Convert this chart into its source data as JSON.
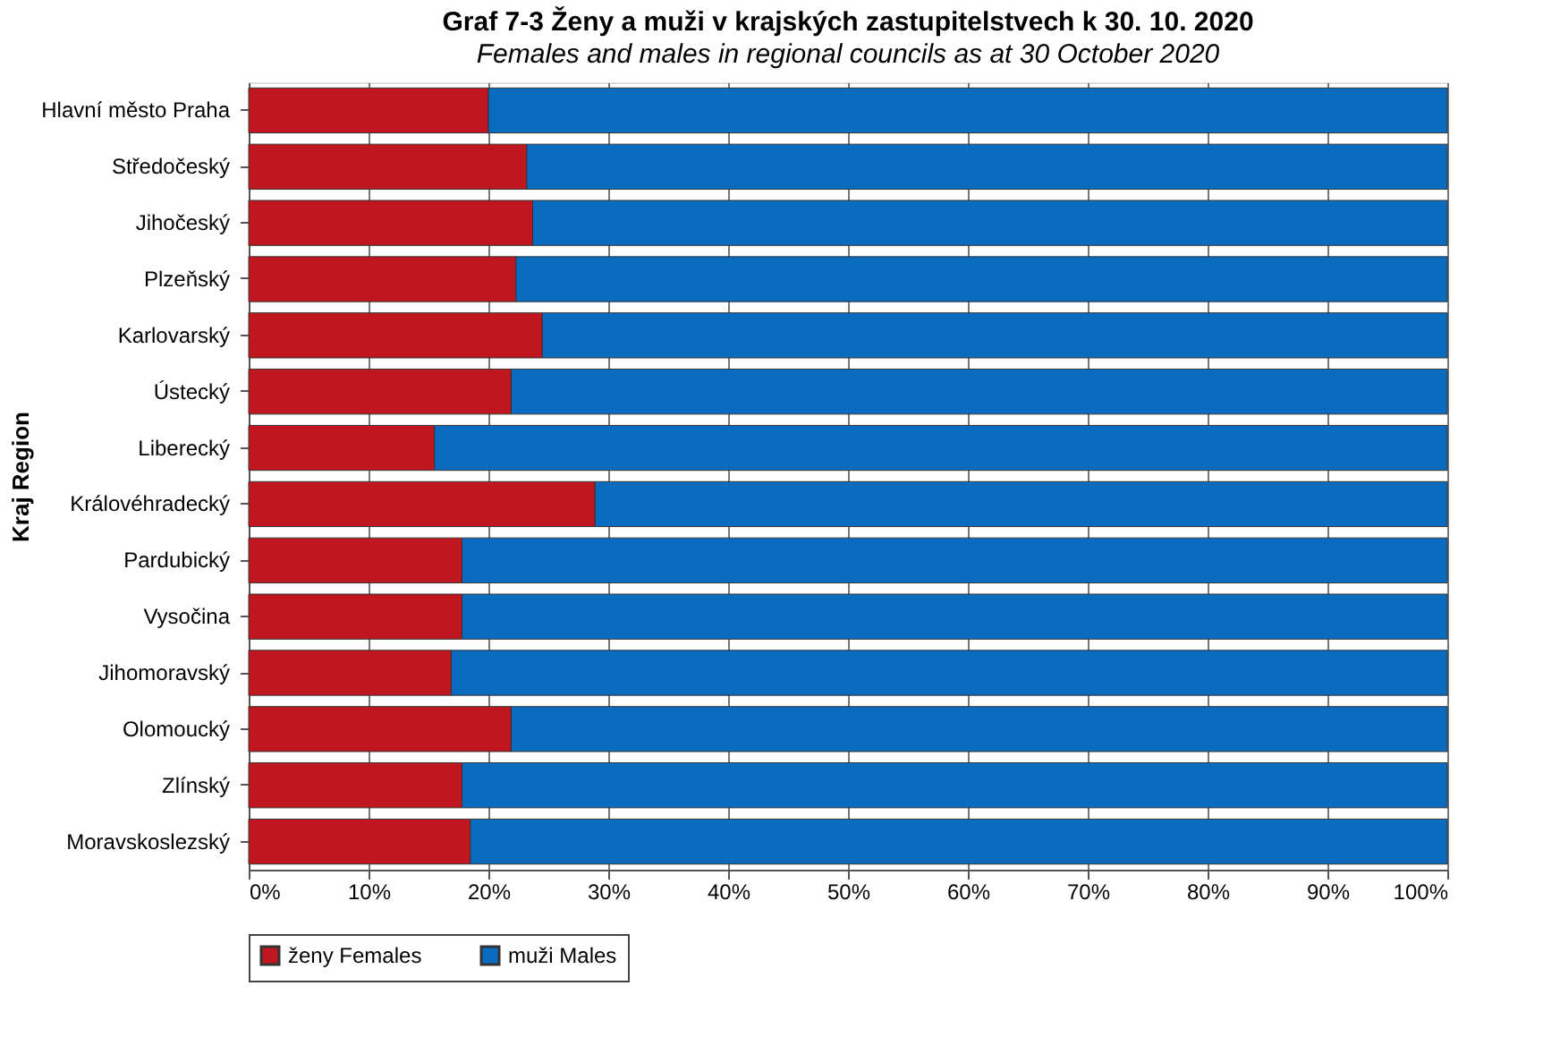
{
  "chart_data": {
    "type": "bar",
    "orientation": "horizontal",
    "stacked": true,
    "title": "Graf 7-3  Ženy a muži v krajských zastupitelstvech k 30. 10. 2020",
    "subtitle": "Females and males in regional councils as at 30 October 2020",
    "ylabel": "Kraj Region",
    "categories": [
      "Hlavní město Praha",
      "Středočeský",
      "Jihočeský",
      "Plzeňský",
      "Karlovarský",
      "Ústecký",
      "Liberecký",
      "Královéhradecký",
      "Pardubický",
      "Vysočina",
      "Jihomoravský",
      "Olomoucký",
      "Zlínský",
      "Moravskoslezský"
    ],
    "series": [
      {
        "name": "ženy Females",
        "color": "#c0161f",
        "values": [
          20.0,
          23.2,
          23.7,
          22.3,
          24.5,
          21.9,
          15.5,
          28.9,
          17.8,
          17.8,
          16.9,
          21.9,
          17.8,
          18.5
        ]
      },
      {
        "name": "muži Males",
        "color": "#0a6cc0",
        "values": [
          80.0,
          76.8,
          76.3,
          77.7,
          75.5,
          78.1,
          84.5,
          71.1,
          82.2,
          82.2,
          83.1,
          78.1,
          82.2,
          81.5
        ]
      }
    ],
    "xlim": [
      0,
      100
    ],
    "xticks": [
      {
        "value": 0,
        "label": "0%"
      },
      {
        "value": 10,
        "label": "10%"
      },
      {
        "value": 20,
        "label": "20%"
      },
      {
        "value": 30,
        "label": "30%"
      },
      {
        "value": 40,
        "label": "40%"
      },
      {
        "value": 50,
        "label": "50%"
      },
      {
        "value": 60,
        "label": "60%"
      },
      {
        "value": 70,
        "label": "70%"
      },
      {
        "value": 80,
        "label": "80%"
      },
      {
        "value": 90,
        "label": "90%"
      },
      {
        "value": 100,
        "label": "100%"
      }
    ],
    "grid": "x",
    "legend": "bottom"
  }
}
